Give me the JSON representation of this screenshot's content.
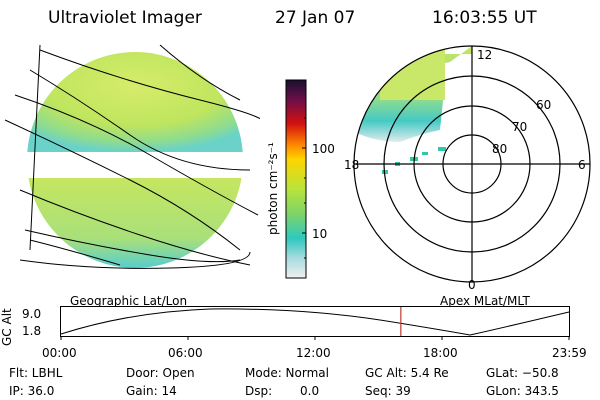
{
  "header": {
    "instrument": "Ultraviolet Imager",
    "date": "27 Jan 07",
    "time": "16:03:55 UT"
  },
  "colorbar": {
    "unit_label": "photon cm⁻²s⁻¹",
    "tick_100": "100",
    "tick_10": "10"
  },
  "polar": {
    "mlt_top": "12",
    "mlt_left": "18",
    "mlt_right": "6",
    "mlt_bottom": "0",
    "lat_60": "60",
    "lat_70": "70",
    "lat_80": "80"
  },
  "panels": {
    "left_caption": "Geographic Lat/Lon",
    "right_caption": "Apex MLat/MLT"
  },
  "timeline": {
    "ylabel": "GC Alt",
    "ytick_top": "9.0",
    "ytick_bottom": "1.8",
    "xticks": [
      "00:00",
      "06:00",
      "12:00",
      "18:00",
      "23:59"
    ],
    "current_time_fraction": 0.669
  },
  "info": {
    "flt": "Flt: LBHL",
    "ip": "IP: 36.0",
    "door": "Door: Open",
    "gain": "Gain: 14",
    "mode": "Mode: Normal",
    "dsp_label": "Dsp:",
    "dsp_value": "0.0",
    "gc_alt": "GC Alt: 5.4 Re",
    "seq": "Seq: 39",
    "glat": "GLat: −50.8",
    "glon": "GLon: 343.5"
  },
  "colors": {
    "marker_line": "#c0392b",
    "fill_main": "#c9e86a",
    "fill_low": "#7fd9c8"
  }
}
